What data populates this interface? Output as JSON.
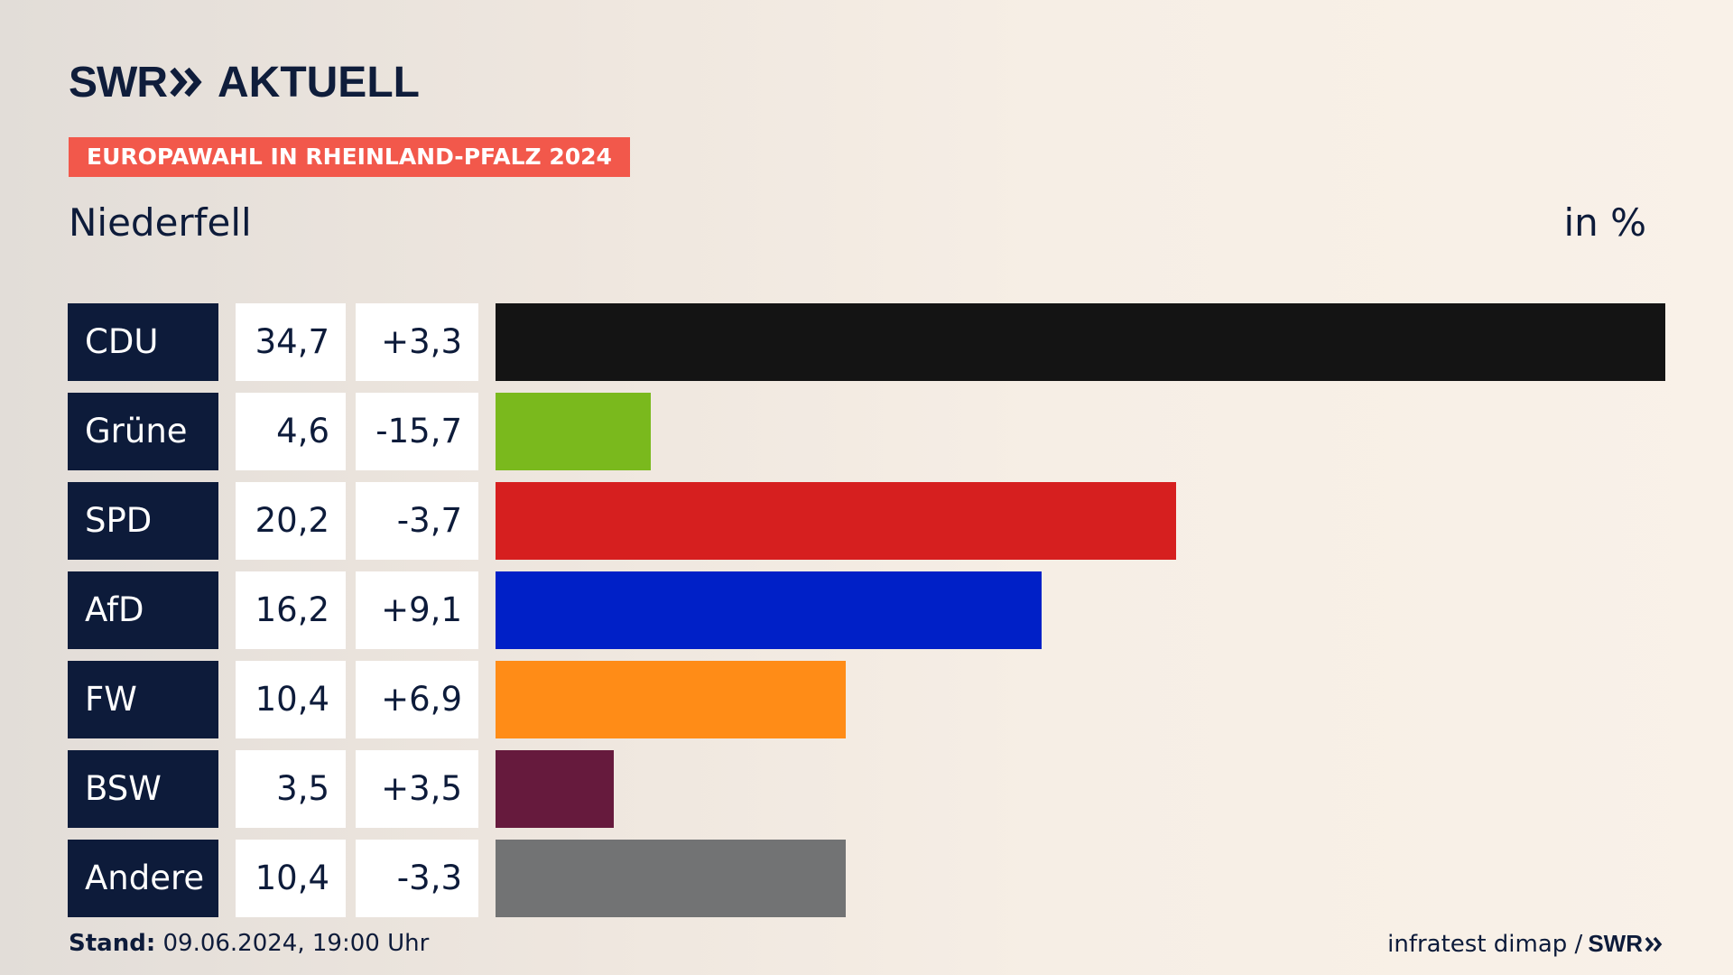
{
  "brand": {
    "name": "SWR",
    "product": "AKTUELL"
  },
  "tag": "EUROPAWAHL IN RHEINLAND-PFALZ 2024",
  "location": "Niederfell",
  "unit": "in %",
  "footer": {
    "stand_label": "Stand:",
    "stand_value": "09.06.2024, 19:00 Uhr",
    "source": "infratest dimap /",
    "source_brand": "SWR"
  },
  "colors": {
    "CDU": "#141414",
    "Grüne": "#7ab91d",
    "SPD": "#d61f1f",
    "AfD": "#0020c7",
    "FW": "#ff8c17",
    "BSW": "#661a3d",
    "Andere": "#727374"
  },
  "chart_data": {
    "type": "bar",
    "categories": [
      "CDU",
      "Grüne",
      "SPD",
      "AfD",
      "FW",
      "BSW",
      "Andere"
    ],
    "series": [
      {
        "values": [
          34.7,
          4.6,
          20.2,
          16.2,
          10.4,
          3.5,
          10.4
        ]
      }
    ],
    "value_labels": [
      "34,7",
      "4,6",
      "20,2",
      "16,2",
      "10,4",
      "3,5",
      "10,4"
    ],
    "change_labels": [
      "+3,3",
      "-15,7",
      "-3,7",
      "+9,1",
      "+6,9",
      "+3,5",
      "-3,3"
    ],
    "changes": [
      3.3,
      -15.7,
      -3.7,
      9.1,
      6.9,
      3.5,
      -3.3
    ],
    "title": "Niederfell",
    "ylabel": "in %",
    "orientation": "horizontal",
    "grid": false,
    "legend": "none"
  }
}
